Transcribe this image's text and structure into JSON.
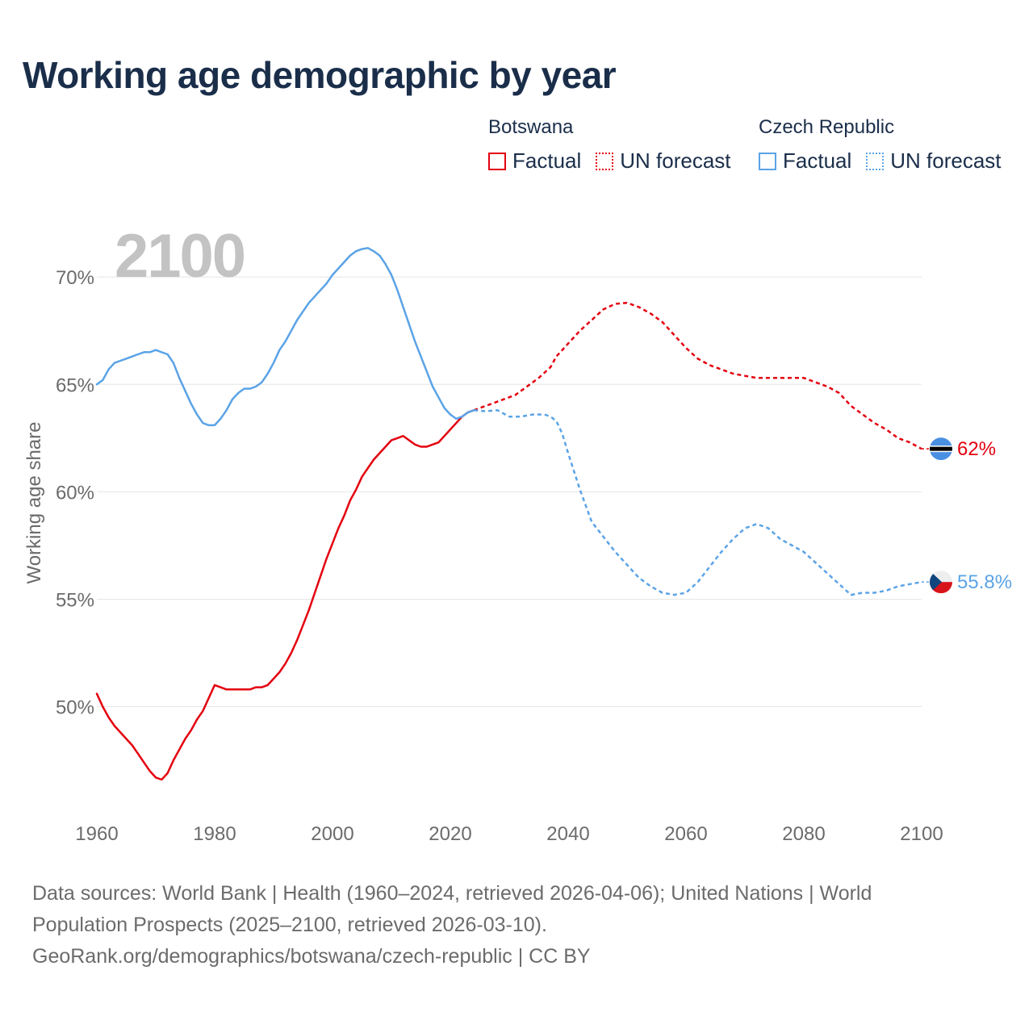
{
  "title": "Working age demographic by year",
  "legend": [
    {
      "country": "Botswana",
      "factual_label": "Factual",
      "forecast_label": "UN forecast",
      "color": "#e3000f"
    },
    {
      "country": "Czech Republic",
      "factual_label": "Factual",
      "forecast_label": "UN forecast",
      "color": "#5ba3e6"
    }
  ],
  "year_watermark": "2100",
  "footer": {
    "line1": "Data sources: World Bank | Health (1960–2024, retrieved 2026-04-06); United Nations | World",
    "line2": "Population Prospects (2025–2100, retrieved 2026-03-10).",
    "line3": "GeoRank.org/demographics/botswana/czech-republic | CC BY"
  },
  "chart_data": {
    "type": "line",
    "ylabel": "Working age share",
    "xlabel": "",
    "xlim": [
      1960,
      2100
    ],
    "ylim": [
      45.7,
      72.0
    ],
    "x_ticks": [
      1960,
      1980,
      2000,
      2020,
      2040,
      2060,
      2080,
      2100
    ],
    "y_ticks": [
      {
        "value": 50,
        "label": "50%"
      },
      {
        "value": 55,
        "label": "55%"
      },
      {
        "value": 60,
        "label": "60%"
      },
      {
        "value": 65,
        "label": "65%"
      },
      {
        "value": 70,
        "label": "70%"
      }
    ],
    "grid": true,
    "series": [
      {
        "name": "Botswana",
        "color": "#e3000f",
        "end_label": "62%",
        "flag": "botswana",
        "factual": [
          [
            1960,
            50.6
          ],
          [
            1961,
            50.0
          ],
          [
            1962,
            49.5
          ],
          [
            1963,
            49.1
          ],
          [
            1964,
            48.8
          ],
          [
            1965,
            48.5
          ],
          [
            1966,
            48.2
          ],
          [
            1967,
            47.8
          ],
          [
            1968,
            47.4
          ],
          [
            1969,
            47.0
          ],
          [
            1970,
            46.7
          ],
          [
            1971,
            46.6
          ],
          [
            1972,
            46.9
          ],
          [
            1973,
            47.5
          ],
          [
            1974,
            48.0
          ],
          [
            1975,
            48.5
          ],
          [
            1976,
            48.9
          ],
          [
            1977,
            49.4
          ],
          [
            1978,
            49.8
          ],
          [
            1979,
            50.4
          ],
          [
            1980,
            51.0
          ],
          [
            1981,
            50.9
          ],
          [
            1982,
            50.8
          ],
          [
            1983,
            50.8
          ],
          [
            1984,
            50.8
          ],
          [
            1985,
            50.8
          ],
          [
            1986,
            50.8
          ],
          [
            1987,
            50.9
          ],
          [
            1988,
            50.9
          ],
          [
            1989,
            51.0
          ],
          [
            1990,
            51.3
          ],
          [
            1991,
            51.6
          ],
          [
            1992,
            52.0
          ],
          [
            1993,
            52.5
          ],
          [
            1994,
            53.1
          ],
          [
            1995,
            53.8
          ],
          [
            1996,
            54.5
          ],
          [
            1997,
            55.3
          ],
          [
            1998,
            56.1
          ],
          [
            1999,
            56.9
          ],
          [
            2000,
            57.6
          ],
          [
            2001,
            58.3
          ],
          [
            2002,
            58.9
          ],
          [
            2003,
            59.6
          ],
          [
            2004,
            60.1
          ],
          [
            2005,
            60.7
          ],
          [
            2006,
            61.1
          ],
          [
            2007,
            61.5
          ],
          [
            2008,
            61.8
          ],
          [
            2009,
            62.1
          ],
          [
            2010,
            62.4
          ],
          [
            2011,
            62.5
          ],
          [
            2012,
            62.6
          ],
          [
            2013,
            62.4
          ],
          [
            2014,
            62.2
          ],
          [
            2015,
            62.1
          ],
          [
            2016,
            62.1
          ],
          [
            2017,
            62.2
          ],
          [
            2018,
            62.3
          ],
          [
            2019,
            62.6
          ],
          [
            2020,
            62.9
          ],
          [
            2021,
            63.2
          ],
          [
            2022,
            63.5
          ],
          [
            2023,
            63.7
          ],
          [
            2024,
            63.8
          ]
        ],
        "forecast": [
          [
            2024,
            63.8
          ],
          [
            2025,
            63.9
          ],
          [
            2027,
            64.1
          ],
          [
            2029,
            64.3
          ],
          [
            2031,
            64.5
          ],
          [
            2033,
            64.9
          ],
          [
            2035,
            65.3
          ],
          [
            2037,
            65.8
          ],
          [
            2038,
            66.3
          ],
          [
            2040,
            66.9
          ],
          [
            2042,
            67.5
          ],
          [
            2044,
            68.0
          ],
          [
            2046,
            68.5
          ],
          [
            2048,
            68.75
          ],
          [
            2050,
            68.8
          ],
          [
            2052,
            68.6
          ],
          [
            2054,
            68.3
          ],
          [
            2056,
            67.9
          ],
          [
            2058,
            67.3
          ],
          [
            2060,
            66.7
          ],
          [
            2062,
            66.2
          ],
          [
            2064,
            65.9
          ],
          [
            2066,
            65.7
          ],
          [
            2068,
            65.5
          ],
          [
            2070,
            65.4
          ],
          [
            2072,
            65.3
          ],
          [
            2075,
            65.3
          ],
          [
            2078,
            65.3
          ],
          [
            2080,
            65.3
          ],
          [
            2082,
            65.1
          ],
          [
            2084,
            64.9
          ],
          [
            2086,
            64.6
          ],
          [
            2088,
            64.0
          ],
          [
            2090,
            63.6
          ],
          [
            2092,
            63.2
          ],
          [
            2094,
            62.9
          ],
          [
            2096,
            62.5
          ],
          [
            2098,
            62.3
          ],
          [
            2100,
            62.0
          ]
        ]
      },
      {
        "name": "Czech Republic",
        "color": "#5ba3e6",
        "end_label": "55.8%",
        "flag": "czech-republic",
        "factual": [
          [
            1960,
            65.0
          ],
          [
            1961,
            65.2
          ],
          [
            1962,
            65.7
          ],
          [
            1963,
            66.0
          ],
          [
            1964,
            66.1
          ],
          [
            1965,
            66.2
          ],
          [
            1966,
            66.3
          ],
          [
            1967,
            66.4
          ],
          [
            1968,
            66.5
          ],
          [
            1969,
            66.5
          ],
          [
            1970,
            66.6
          ],
          [
            1971,
            66.5
          ],
          [
            1972,
            66.4
          ],
          [
            1973,
            66.0
          ],
          [
            1974,
            65.3
          ],
          [
            1975,
            64.7
          ],
          [
            1976,
            64.1
          ],
          [
            1977,
            63.6
          ],
          [
            1978,
            63.2
          ],
          [
            1979,
            63.1
          ],
          [
            1980,
            63.1
          ],
          [
            1981,
            63.4
          ],
          [
            1982,
            63.8
          ],
          [
            1983,
            64.3
          ],
          [
            1984,
            64.6
          ],
          [
            1985,
            64.8
          ],
          [
            1986,
            64.8
          ],
          [
            1987,
            64.9
          ],
          [
            1988,
            65.1
          ],
          [
            1989,
            65.5
          ],
          [
            1990,
            66.0
          ],
          [
            1991,
            66.6
          ],
          [
            1992,
            67.0
          ],
          [
            1993,
            67.5
          ],
          [
            1994,
            68.0
          ],
          [
            1995,
            68.4
          ],
          [
            1996,
            68.8
          ],
          [
            1997,
            69.1
          ],
          [
            1998,
            69.4
          ],
          [
            1999,
            69.7
          ],
          [
            2000,
            70.1
          ],
          [
            2001,
            70.4
          ],
          [
            2002,
            70.7
          ],
          [
            2003,
            71.0
          ],
          [
            2004,
            71.2
          ],
          [
            2005,
            71.3
          ],
          [
            2006,
            71.35
          ],
          [
            2007,
            71.2
          ],
          [
            2008,
            71.0
          ],
          [
            2009,
            70.6
          ],
          [
            2010,
            70.1
          ],
          [
            2011,
            69.4
          ],
          [
            2012,
            68.6
          ],
          [
            2013,
            67.8
          ],
          [
            2014,
            67.0
          ],
          [
            2015,
            66.3
          ],
          [
            2016,
            65.6
          ],
          [
            2017,
            64.9
          ],
          [
            2018,
            64.4
          ],
          [
            2019,
            63.9
          ],
          [
            2020,
            63.6
          ],
          [
            2021,
            63.4
          ],
          [
            2022,
            63.5
          ],
          [
            2023,
            63.7
          ],
          [
            2024,
            63.8
          ]
        ],
        "forecast": [
          [
            2024,
            63.8
          ],
          [
            2026,
            63.75
          ],
          [
            2028,
            63.8
          ],
          [
            2030,
            63.5
          ],
          [
            2032,
            63.5
          ],
          [
            2034,
            63.6
          ],
          [
            2036,
            63.6
          ],
          [
            2037,
            63.5
          ],
          [
            2038,
            63.3
          ],
          [
            2039,
            62.7
          ],
          [
            2040,
            61.8
          ],
          [
            2042,
            60.1
          ],
          [
            2044,
            58.6
          ],
          [
            2046,
            57.9
          ],
          [
            2048,
            57.2
          ],
          [
            2050,
            56.6
          ],
          [
            2052,
            56.0
          ],
          [
            2054,
            55.6
          ],
          [
            2056,
            55.3
          ],
          [
            2058,
            55.2
          ],
          [
            2060,
            55.3
          ],
          [
            2062,
            55.8
          ],
          [
            2064,
            56.5
          ],
          [
            2066,
            57.2
          ],
          [
            2068,
            57.8
          ],
          [
            2070,
            58.3
          ],
          [
            2072,
            58.5
          ],
          [
            2074,
            58.3
          ],
          [
            2076,
            57.8
          ],
          [
            2078,
            57.5
          ],
          [
            2080,
            57.2
          ],
          [
            2082,
            56.7
          ],
          [
            2084,
            56.2
          ],
          [
            2086,
            55.7
          ],
          [
            2088,
            55.2
          ],
          [
            2090,
            55.3
          ],
          [
            2092,
            55.3
          ],
          [
            2094,
            55.4
          ],
          [
            2096,
            55.6
          ],
          [
            2098,
            55.7
          ],
          [
            2100,
            55.8
          ]
        ]
      }
    ]
  }
}
